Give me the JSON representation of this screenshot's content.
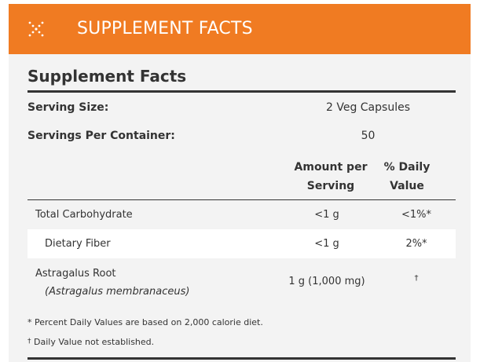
{
  "header": {
    "title": "SUPPLEMENT FACTS",
    "icon": "sparkle-cross-icon",
    "color": "#f07b22"
  },
  "facts": {
    "title": "Supplement Facts",
    "serving_size_label": "Serving Size:",
    "serving_size_value": "2 Veg Capsules",
    "servings_per_container_label": "Servings Per Container:",
    "servings_per_container_value": "50",
    "col_amount_line1": "Amount per",
    "col_amount_line2": "Serving",
    "col_dv_line1": "% Daily",
    "col_dv_line2": "Value",
    "rows": [
      {
        "name": "Total Carbohydrate",
        "amount": "<1 g",
        "dv": "<1%*"
      },
      {
        "name": "Dietary Fiber",
        "amount": "<1 g",
        "dv": "2%*"
      },
      {
        "name": "Astragalus Root",
        "botanical": "(Astragalus membranaceus)",
        "amount": "1 g (1,000 mg)",
        "dv": "†"
      }
    ],
    "footnote_1": "* Percent Daily Values are based on 2,000 calorie diet.",
    "footnote_2_mark": "†",
    "footnote_2_text": " Daily Value not established."
  }
}
